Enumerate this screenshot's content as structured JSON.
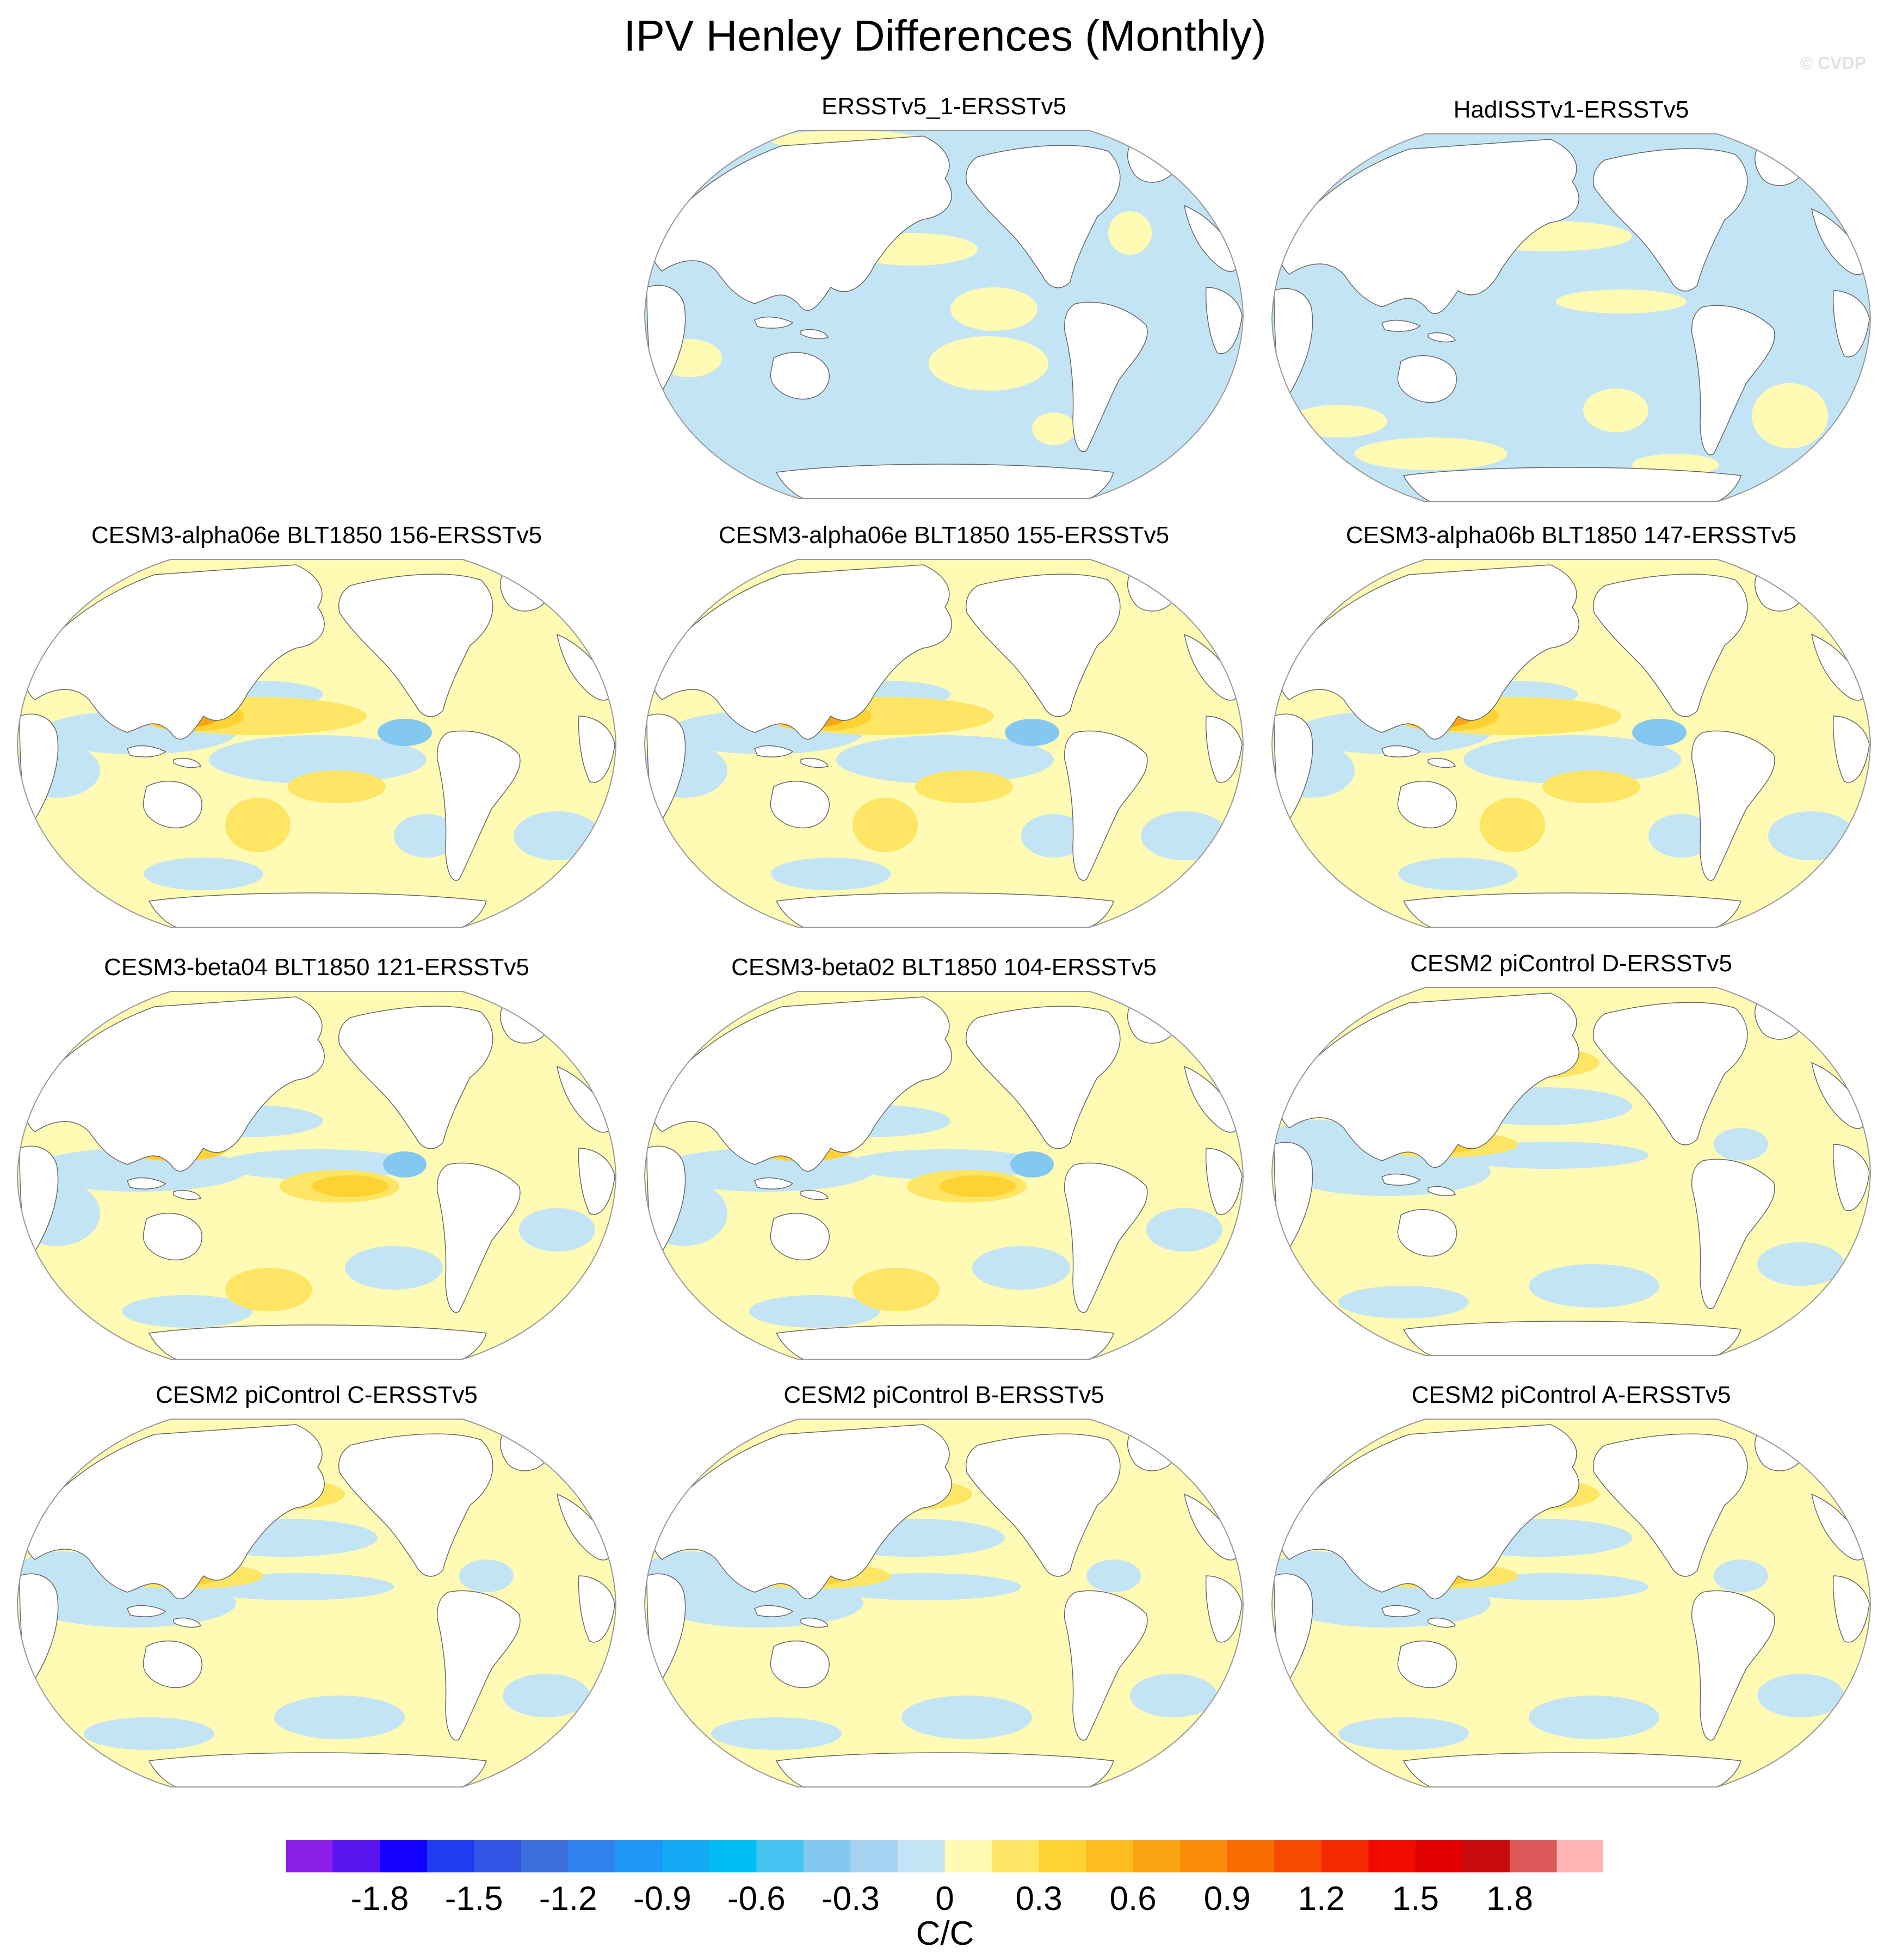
{
  "figure": {
    "title": "IPV Henley Differences (Monthly)",
    "watermark": "© CVDP"
  },
  "panels": [
    {
      "title": "ERSSTv5_1-ERSSTv5",
      "pattern": "obs-a"
    },
    {
      "title": "HadISSTv1-ERSSTv5",
      "pattern": "obs-b"
    },
    {
      "title": "CESM3-alpha06e BLT1850 156-ERSSTv5",
      "pattern": "model-strong"
    },
    {
      "title": "CESM3-alpha06e BLT1850 155-ERSSTv5",
      "pattern": "model-strong"
    },
    {
      "title": "CESM3-alpha06b BLT1850 147-ERSSTv5",
      "pattern": "model-strong"
    },
    {
      "title": "CESM3-beta04 BLT1850 121-ERSSTv5",
      "pattern": "model-mid"
    },
    {
      "title": "CESM3-beta02 BLT1850 104-ERSSTv5",
      "pattern": "model-mid"
    },
    {
      "title": "CESM2 piControl D-ERSSTv5",
      "pattern": "model-weak"
    },
    {
      "title": "CESM2 piControl C-ERSSTv5",
      "pattern": "model-weak"
    },
    {
      "title": "CESM2 piControl B-ERSSTv5",
      "pattern": "model-weak"
    },
    {
      "title": "CESM2 piControl A-ERSSTv5",
      "pattern": "model-weak"
    }
  ],
  "colorbar": {
    "units": "C/C",
    "colors": [
      "#8a1ee6",
      "#5a14f0",
      "#1400ff",
      "#1e3cf0",
      "#3255e6",
      "#3c6edc",
      "#2d82f0",
      "#1e96f5",
      "#14aaf5",
      "#00bef5",
      "#46c3f0",
      "#82c8f0",
      "#a5d2f0",
      "#c3e4f5",
      "#fffab4",
      "#fee664",
      "#fdd232",
      "#fcbe1e",
      "#fba514",
      "#fa8c0a",
      "#f86e00",
      "#f64b00",
      "#f52800",
      "#f00a00",
      "#e10000",
      "#c80a0a",
      "#dc5a5a",
      "#ffb4b4"
    ],
    "tick_labels": [
      {
        "label": "-1.8",
        "boundary": 2
      },
      {
        "label": "-1.5",
        "boundary": 4
      },
      {
        "label": "-1.2",
        "boundary": 6
      },
      {
        "label": "-0.9",
        "boundary": 8
      },
      {
        "label": "-0.6",
        "boundary": 10
      },
      {
        "label": "-0.3",
        "boundary": 12
      },
      {
        "label": "0",
        "boundary": 14
      },
      {
        "label": "0.3",
        "boundary": 16
      },
      {
        "label": "0.6",
        "boundary": 18
      },
      {
        "label": "0.9",
        "boundary": 20
      },
      {
        "label": "1.2",
        "boundary": 22
      },
      {
        "label": "1.5",
        "boundary": 24
      },
      {
        "label": "1.8",
        "boundary": 26
      }
    ]
  }
}
